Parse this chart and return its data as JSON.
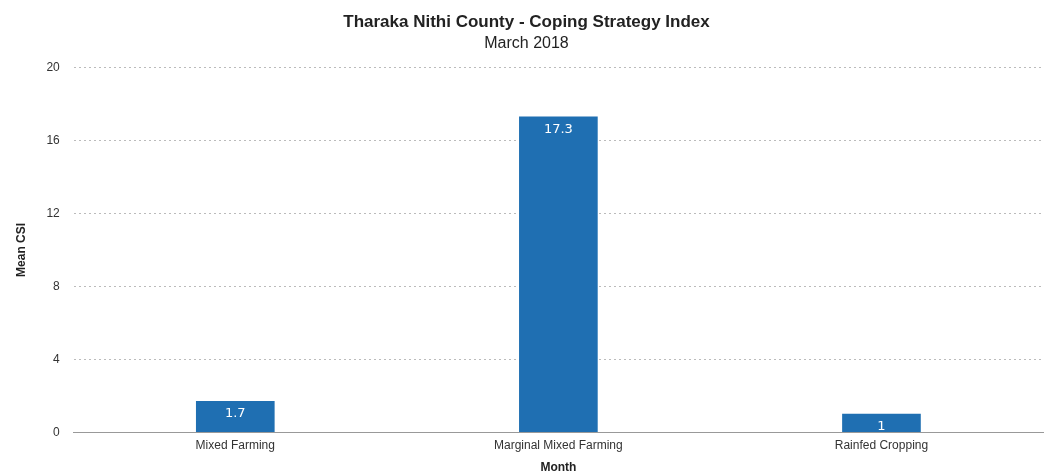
{
  "chart_data": {
    "type": "bar",
    "title": "Tharaka Nithi County - Coping Strategy Index",
    "subtitle": "March 2018",
    "xlabel": "Month",
    "ylabel": "Mean CSI",
    "categories": [
      "Mixed Farming",
      "Marginal Mixed Farming",
      "Rainfed Cropping"
    ],
    "values": [
      1.7,
      17.3,
      1
    ],
    "color": "#1f6fb2",
    "ylim": [
      0,
      20
    ],
    "yticks": [
      0,
      4,
      8,
      12,
      16,
      20
    ],
    "grid": "y",
    "data_labels": true,
    "legend": false
  }
}
